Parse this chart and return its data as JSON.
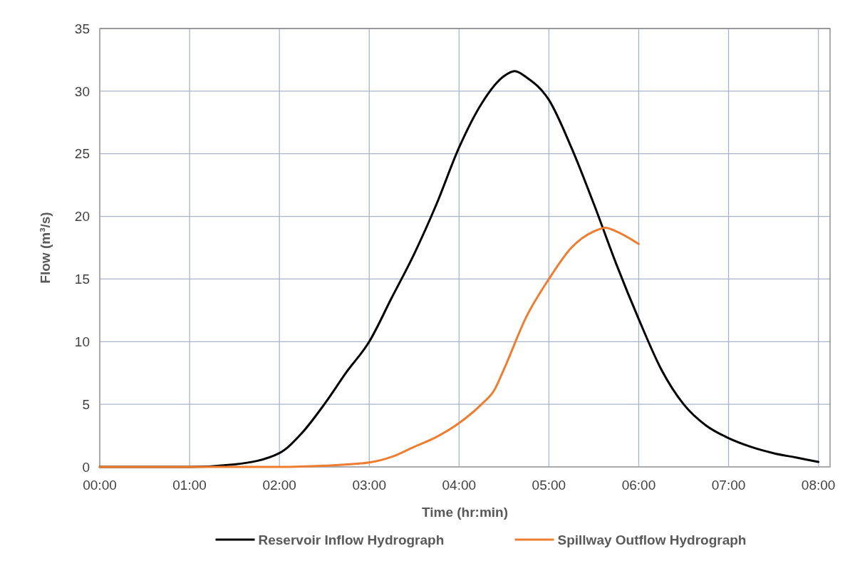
{
  "chart_data": {
    "type": "line",
    "xlabel": "Time (hr:min)",
    "ylabel": "Flow (m³/s)",
    "xlim": [
      0,
      8.13
    ],
    "ylim": [
      0,
      35
    ],
    "xticks": [
      {
        "value": 0,
        "label": "00:00"
      },
      {
        "value": 1,
        "label": "01:00"
      },
      {
        "value": 2,
        "label": "02:00"
      },
      {
        "value": 3,
        "label": "03:00"
      },
      {
        "value": 4,
        "label": "04:00"
      },
      {
        "value": 5,
        "label": "05:00"
      },
      {
        "value": 6,
        "label": "06:00"
      },
      {
        "value": 7,
        "label": "07:00"
      },
      {
        "value": 8,
        "label": "08:00"
      }
    ],
    "yticks": [
      0,
      5,
      10,
      15,
      20,
      25,
      30,
      35
    ],
    "grid": true,
    "legend": "bottom",
    "marker": "none",
    "line_style": "solid",
    "series": [
      {
        "name": "Reservoir Inflow Hydrograph",
        "color": "#000000",
        "x": [
          0,
          1,
          1.5,
          2,
          2.25,
          2.5,
          2.75,
          3,
          3.25,
          3.5,
          3.75,
          4,
          4.25,
          4.5,
          4.62,
          4.75,
          5,
          5.25,
          5.5,
          5.75,
          6,
          6.25,
          6.5,
          6.75,
          7,
          7.25,
          7.5,
          7.75,
          8
        ],
        "values": [
          0,
          0,
          0.2,
          1.1,
          2.7,
          5,
          7.6,
          10,
          13.5,
          17,
          21,
          25.5,
          29,
          31.2,
          31.6,
          31.1,
          29.3,
          25.5,
          21,
          16.2,
          11.8,
          7.8,
          5,
          3.3,
          2.3,
          1.6,
          1.1,
          0.75,
          0.4
        ]
      },
      {
        "name": "Spillway Outflow Hydrograph",
        "color": "#ed7d31",
        "x": [
          0,
          1,
          2,
          2.5,
          3,
          3.25,
          3.5,
          3.75,
          4,
          4.25,
          4.39,
          4.5,
          4.75,
          5,
          5.25,
          5.5,
          5.63,
          5.75,
          6
        ],
        "values": [
          0,
          0,
          0,
          0.1,
          0.35,
          0.8,
          1.6,
          2.4,
          3.5,
          5,
          6.1,
          7.8,
          12,
          15,
          17.5,
          18.8,
          19.1,
          18.8,
          17.8
        ]
      }
    ]
  }
}
